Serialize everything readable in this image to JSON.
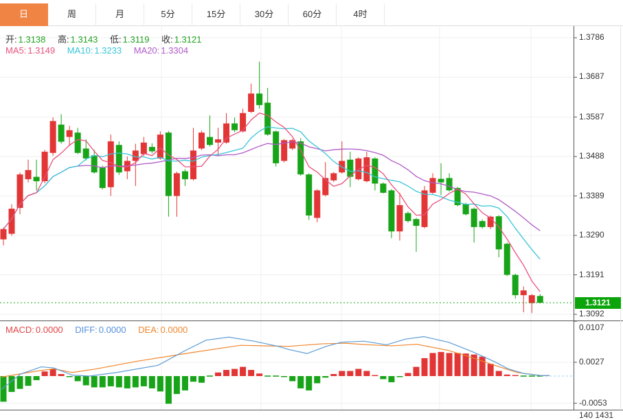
{
  "tabs": {
    "items": [
      {
        "label": "日",
        "active": true
      },
      {
        "label": "周",
        "active": false
      },
      {
        "label": "月",
        "active": false
      },
      {
        "label": "5分",
        "active": false
      },
      {
        "label": "15分",
        "active": false
      },
      {
        "label": "30分",
        "active": false
      },
      {
        "label": "60分",
        "active": false
      },
      {
        "label": "4时",
        "active": false
      }
    ]
  },
  "legend": {
    "open_label": "开:",
    "open": "1.3138",
    "high_label": "高:",
    "high": "1.3143",
    "low_label": "低:",
    "low": "1.3119",
    "close_label": "收:",
    "close": "1.3121",
    "ma5_label": "MA5:",
    "ma5": "1.3149",
    "ma10_label": "MA10:",
    "ma10": "1.3233",
    "ma20_label": "MA20:",
    "ma20": "1.3304"
  },
  "macd_legend": {
    "macd_label": "MACD:",
    "macd": "0.0000",
    "diff_label": "DIFF:",
    "diff": "0.0000",
    "dea_label": "DEA:",
    "dea": "0.0000"
  },
  "price_axis": {
    "current": "1.3121"
  },
  "bottom_clipped_text": "140 1431",
  "colors": {
    "accent_orange": "#f08445",
    "up_red": "#e23535",
    "down_green": "#18a418",
    "badge_green": "#0ba50b",
    "value_green": "#21a421",
    "ma5_pink": "#e8517d",
    "ma10_cyan": "#38c5d8",
    "ma20_purple": "#b05ac8",
    "macd_red": "#e04545",
    "diff_blue": "#5590dd",
    "dea_orange": "#f2862d",
    "diff_line": "#5b9bd5",
    "dea_line": "#f0862c",
    "zero_dash": "#9fd0e8",
    "grid": "#efefef",
    "frame": "#555555",
    "label_dark": "#333333"
  },
  "chart_data": [
    {
      "type": "candlestick",
      "title": "Daily candlestick chart with MA5/MA10/MA20 overlays",
      "ylim": [
        1.3092,
        1.3786
      ],
      "yticks": [
        1.3786,
        1.3687,
        1.3587,
        1.3488,
        1.3389,
        1.329,
        1.3191,
        1.3092
      ],
      "grid": true,
      "legend_position": "top-left",
      "current_price": 1.3121,
      "last_bar": {
        "open": 1.3138,
        "high": 1.3143,
        "low": 1.3119,
        "close": 1.3121
      },
      "ma_values": {
        "ma5": 1.3149,
        "ma10": 1.3233,
        "ma20": 1.3304
      },
      "up_color_convention": "red=up, green=down",
      "candles": [
        [
          1.328,
          1.331,
          1.3265,
          1.3306
        ],
        [
          1.3294,
          1.3368,
          1.3289,
          1.3357
        ],
        [
          1.3359,
          1.3448,
          1.3343,
          1.3443
        ],
        [
          1.3431,
          1.348,
          1.3423,
          1.3454
        ],
        [
          1.3437,
          1.348,
          1.3403,
          1.3426
        ],
        [
          1.3426,
          1.3505,
          1.3421,
          1.35
        ],
        [
          1.3497,
          1.3586,
          1.349,
          1.3577
        ],
        [
          1.3568,
          1.3594,
          1.352,
          1.3525
        ],
        [
          1.3537,
          1.3565,
          1.3514,
          1.3554
        ],
        [
          1.3548,
          1.356,
          1.3494,
          1.3497
        ],
        [
          1.3508,
          1.3531,
          1.3478,
          1.3483
        ],
        [
          1.3491,
          1.3505,
          1.3445,
          1.3448
        ],
        [
          1.346,
          1.3465,
          1.3405,
          1.3409
        ],
        [
          1.3411,
          1.3543,
          1.3389,
          1.3526
        ],
        [
          1.3517,
          1.3526,
          1.3442,
          1.3448
        ],
        [
          1.3451,
          1.3488,
          1.3431,
          1.3477
        ],
        [
          1.3477,
          1.352,
          1.3414,
          1.3503
        ],
        [
          1.3494,
          1.3537,
          1.3489,
          1.3523
        ],
        [
          1.3512,
          1.3521,
          1.3496,
          1.3501
        ],
        [
          1.3483,
          1.3551,
          1.348,
          1.3543
        ],
        [
          1.3548,
          1.3552,
          1.3337,
          1.3389
        ],
        [
          1.3389,
          1.345,
          1.3337,
          1.3446
        ],
        [
          1.3451,
          1.3456,
          1.3414,
          1.3431
        ],
        [
          1.3431,
          1.356,
          1.3428,
          1.3503
        ],
        [
          1.3508,
          1.3553,
          1.3504,
          1.3548
        ],
        [
          1.3537,
          1.3591,
          1.3513,
          1.3517
        ],
        [
          1.3523,
          1.356,
          1.3491,
          1.3531
        ],
        [
          1.3523,
          1.3597,
          1.352,
          1.3571
        ],
        [
          1.3571,
          1.3586,
          1.3549,
          1.3554
        ],
        [
          1.3551,
          1.3608,
          1.3548,
          1.3597
        ],
        [
          1.36,
          1.3671,
          1.3597,
          1.3646
        ],
        [
          1.3646,
          1.3726,
          1.3608,
          1.3617
        ],
        [
          1.3623,
          1.366,
          1.354,
          1.3543
        ],
        [
          1.3551,
          1.3553,
          1.3463,
          1.3471
        ],
        [
          1.3477,
          1.3532,
          1.3473,
          1.3529
        ],
        [
          1.3508,
          1.3532,
          1.3504,
          1.3529
        ],
        [
          1.3526,
          1.3534,
          1.344,
          1.3443
        ],
        [
          1.3443,
          1.3446,
          1.3329,
          1.334
        ],
        [
          1.3334,
          1.3406,
          1.3323,
          1.3403
        ],
        [
          1.3391,
          1.3474,
          1.3388,
          1.3434
        ],
        [
          1.3428,
          1.3449,
          1.3424,
          1.3446
        ],
        [
          1.3448,
          1.3526,
          1.3445,
          1.3477
        ],
        [
          1.348,
          1.35,
          1.3411,
          1.3437
        ],
        [
          1.3431,
          1.3486,
          1.3428,
          1.3483
        ],
        [
          1.3426,
          1.35,
          1.3423,
          1.3486
        ],
        [
          1.3483,
          1.3486,
          1.3403,
          1.342
        ],
        [
          1.342,
          1.3423,
          1.3395,
          1.3397
        ],
        [
          1.3403,
          1.3406,
          1.3283,
          1.33
        ],
        [
          1.33,
          1.3397,
          1.3277,
          1.3366
        ],
        [
          1.3346,
          1.335,
          1.3322,
          1.3326
        ],
        [
          1.3331,
          1.3334,
          1.3249,
          1.3314
        ],
        [
          1.3311,
          1.3414,
          1.3308,
          1.3403
        ],
        [
          1.3397,
          1.3446,
          1.3394,
          1.3434
        ],
        [
          1.3432,
          1.3471,
          1.3391,
          1.3423
        ],
        [
          1.3434,
          1.3446,
          1.34,
          1.3403
        ],
        [
          1.3409,
          1.3412,
          1.3363,
          1.3366
        ],
        [
          1.3369,
          1.3372,
          1.334,
          1.3343
        ],
        [
          1.3357,
          1.336,
          1.3272,
          1.3311
        ],
        [
          1.3326,
          1.333,
          1.3307,
          1.3311
        ],
        [
          1.3311,
          1.334,
          1.3306,
          1.3337
        ],
        [
          1.3338,
          1.3341,
          1.3235,
          1.3255
        ],
        [
          1.3269,
          1.3272,
          1.3188,
          1.3191
        ],
        [
          1.3191,
          1.3194,
          1.3131,
          1.314
        ],
        [
          1.314,
          1.3162,
          1.3097,
          1.3152
        ],
        [
          1.312,
          1.3143,
          1.3095,
          1.314
        ],
        [
          1.3138,
          1.3143,
          1.3119,
          1.3121
        ]
      ]
    },
    {
      "type": "bar",
      "name": "MACD",
      "yticks": [
        0.0107,
        0.0027,
        -0.0053
      ],
      "values": [
        -0.005,
        -0.0031,
        -0.0025,
        -0.0019,
        -0.0008,
        0.0009,
        0.0014,
        0.0004,
        -0.0002,
        -0.001,
        -0.0018,
        -0.0022,
        -0.0022,
        -0.002,
        -0.0022,
        -0.0024,
        -0.0022,
        -0.002,
        -0.0024,
        -0.003,
        -0.0054,
        -0.0035,
        -0.0028,
        -0.0011,
        -0.0013,
        -0.0001,
        0.0007,
        0.0012,
        0.0014,
        0.0018,
        0.0012,
        0.0005,
        0.0001,
        0.0001,
        -0.0002,
        -0.001,
        -0.0024,
        -0.0028,
        -0.0014,
        -0.0003,
        0.0004,
        0.001,
        0.001,
        0.0014,
        0.001,
        0.0002,
        -0.0006,
        -0.0012,
        -0.0002,
        0.0006,
        0.0018,
        0.0035,
        0.0045,
        0.0047,
        0.0045,
        0.0045,
        0.0044,
        0.0042,
        0.0038,
        0.0024,
        0.001,
        0.0003,
        0.0002,
        0.0001,
        0.0,
        0.0
      ],
      "diff_line": {
        "x": [
          2,
          30,
          60,
          78,
          105,
          130,
          170,
          230,
          270,
          300,
          333,
          370,
          405,
          420,
          447,
          475,
          497,
          530,
          563,
          590,
          617,
          653,
          687,
          720,
          740,
          763,
          787,
          800
        ],
        "v": [
          -0.0026,
          0.0004,
          0.0018,
          0.0016,
          0.0002,
          0.0,
          0.0007,
          0.0021,
          0.005,
          0.007,
          0.0076,
          0.0068,
          0.0058,
          0.0052,
          0.0044,
          0.0058,
          0.0066,
          0.0068,
          0.0061,
          0.0072,
          0.0077,
          0.0066,
          0.0048,
          0.0028,
          0.0014,
          0.0005,
          0.0001,
          0.0001
        ]
      },
      "dea_line": {
        "x": [
          2,
          50,
          78,
          105,
          140,
          200,
          280,
          350,
          420,
          470,
          503,
          537,
          570,
          607,
          653,
          687,
          720,
          753,
          787,
          800
        ],
        "v": [
          -0.0002,
          0.0009,
          0.0014,
          0.0007,
          0.0014,
          0.0029,
          0.0046,
          0.006,
          0.0058,
          0.0063,
          0.0064,
          0.0061,
          0.0059,
          0.0062,
          0.005,
          0.0036,
          0.0021,
          0.0007,
          0.0001,
          0.0001
        ]
      }
    }
  ]
}
